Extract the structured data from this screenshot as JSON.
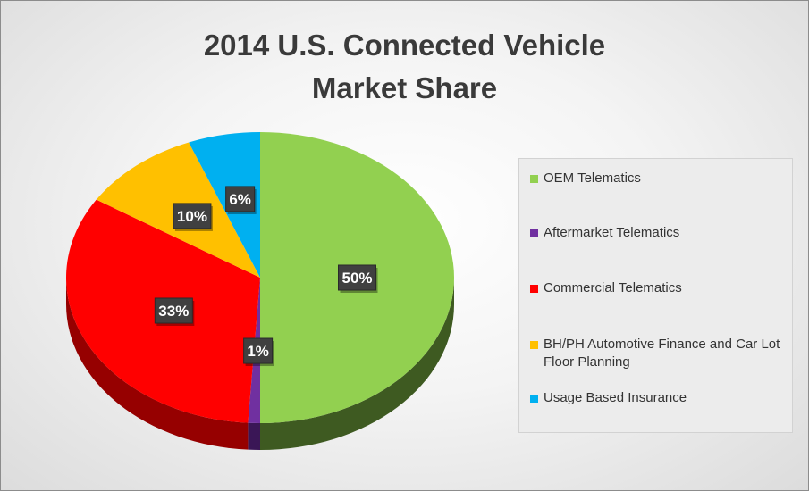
{
  "chart_data": {
    "type": "pie",
    "title": "2014 U.S. Connected Vehicle\nMarket Share",
    "slices": [
      {
        "label": "OEM Telematics",
        "value": 50,
        "display": "50%",
        "color": "#92d050",
        "side_color": "#3e5a21"
      },
      {
        "label": "Aftermarket Telematics",
        "value": 1,
        "display": "1%",
        "color": "#7030a0",
        "side_color": "#3a1656"
      },
      {
        "label": "Commercial Telematics",
        "value": 33,
        "display": "33%",
        "color": "#ff0000",
        "side_color": "#960000"
      },
      {
        "label": "BH/PH Automotive Finance and Car Lot Floor Planning",
        "value": 10,
        "display": "10%",
        "color": "#ffc000",
        "side_color": "#8e6a00"
      },
      {
        "label": "Usage Based Insurance",
        "value": 6,
        "display": "6%",
        "color": "#00b0f0",
        "side_color": "#005f84"
      }
    ],
    "legend_position": "right",
    "data_labels": true,
    "style": "3d"
  }
}
